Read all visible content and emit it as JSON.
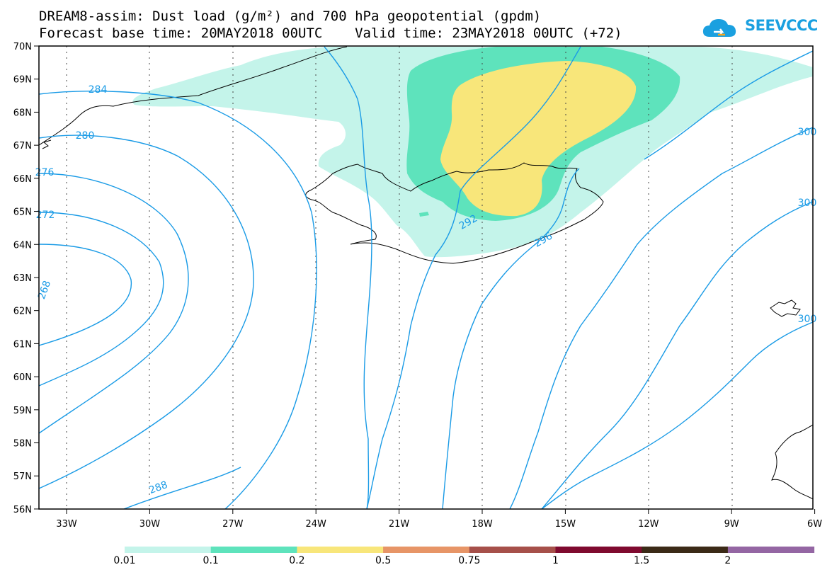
{
  "title": {
    "line1": "DREAM8-assim: Dust load (g/m²) and 700 hPa geopotential (gpdm)",
    "line2": "Forecast base time: 20MAY2018 00UTC    Valid time: 23MAY2018 00UTC (+72)"
  },
  "logo": {
    "text": "SEEVCCC",
    "icon": "cloud-icon",
    "color": "#1aa0e0"
  },
  "map": {
    "lat_labels": [
      "70N",
      "69N",
      "68N",
      "67N",
      "66N",
      "65N",
      "64N",
      "63N",
      "62N",
      "61N",
      "60N",
      "59N",
      "58N",
      "57N",
      "56N"
    ],
    "lon_labels": [
      "33W",
      "30W",
      "27W",
      "24W",
      "21W",
      "18W",
      "15W",
      "12W",
      "9W",
      "6W"
    ],
    "contour_labels": [
      {
        "text": "284"
      },
      {
        "text": "280"
      },
      {
        "text": "276"
      },
      {
        "text": "272"
      },
      {
        "text": "268"
      },
      {
        "text": "288"
      },
      {
        "text": "292"
      },
      {
        "text": "296"
      },
      {
        "text": "300"
      },
      {
        "text": "300"
      },
      {
        "text": "300"
      }
    ],
    "contour_color": "#1a9be6",
    "coast_color": "#000000"
  },
  "colorbar": {
    "labels": [
      "0.01",
      "0.1",
      "0.2",
      "0.5",
      "0.75",
      "1",
      "1.5",
      "2"
    ],
    "colors": [
      "#c4f4ea",
      "#5ee3bc",
      "#f8e67a",
      "#e79567",
      "#a6504a",
      "#7f0a2f",
      "#3b2a17",
      "#9466a3"
    ]
  }
}
